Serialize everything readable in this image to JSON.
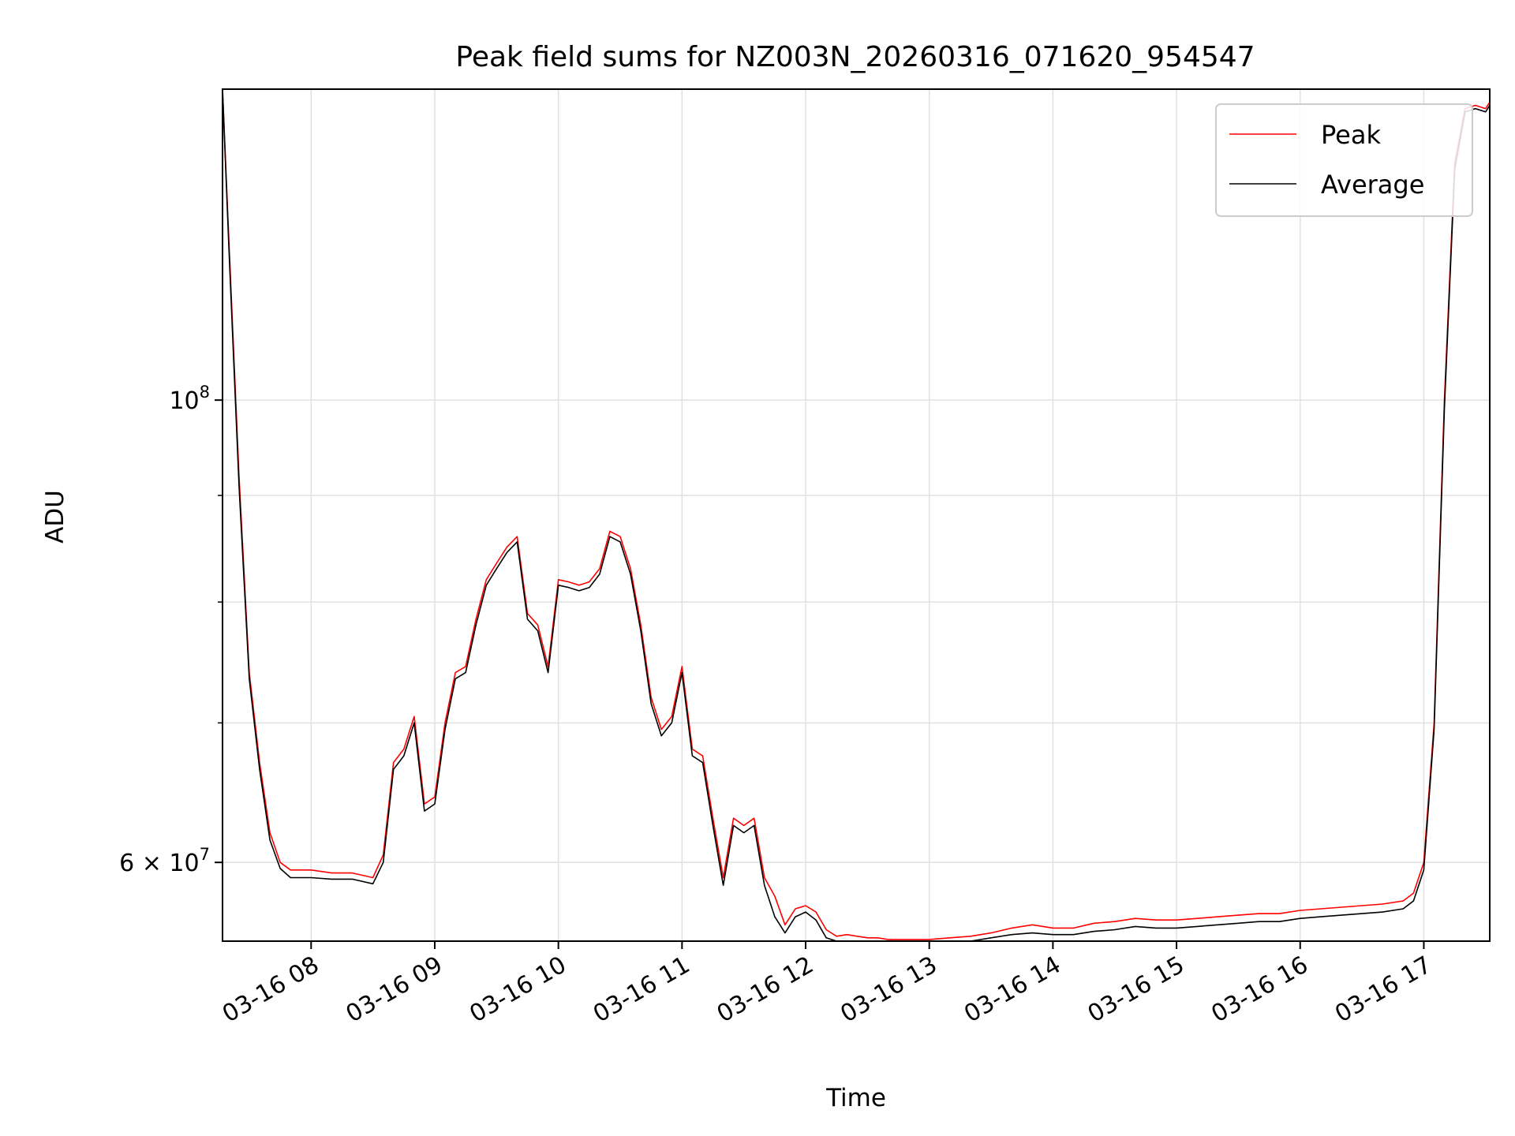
{
  "chart_data": {
    "type": "line",
    "title": "Peak field sums for NZ003N_20260316_071620_954547",
    "xlabel": "Time",
    "ylabel": "ADU",
    "yscale": "log",
    "grid": true,
    "legend_position": "top-right",
    "x_ticks": [
      "03-16 08",
      "03-16 09",
      "03-16 10",
      "03-16 11",
      "03-16 12",
      "03-16 13",
      "03-16 14",
      "03-16 15",
      "03-16 16",
      "03-16 17"
    ],
    "y_tick_labels": [
      {
        "value": 100000000,
        "mant": "10",
        "exp": "8"
      },
      {
        "value": 60000000,
        "mant": "6 × 10",
        "exp": "7"
      }
    ],
    "y_minor_ticks": [
      70000000,
      80000000,
      90000000
    ],
    "xlim": [
      "03-16 07:17",
      "03-16 17:32"
    ],
    "ylim": [
      55000000,
      141000000
    ],
    "x": [
      "07:17",
      "07:20",
      "07:25",
      "07:30",
      "07:35",
      "07:40",
      "07:45",
      "07:50",
      "08:00",
      "08:10",
      "08:20",
      "08:30",
      "08:35",
      "08:40",
      "08:45",
      "08:50",
      "08:55",
      "09:00",
      "09:05",
      "09:10",
      "09:15",
      "09:20",
      "09:25",
      "09:30",
      "09:35",
      "09:40",
      "09:45",
      "09:50",
      "09:55",
      "10:00",
      "10:05",
      "10:10",
      "10:15",
      "10:20",
      "10:25",
      "10:30",
      "10:35",
      "10:40",
      "10:45",
      "10:50",
      "10:55",
      "11:00",
      "11:05",
      "11:10",
      "11:15",
      "11:20",
      "11:25",
      "11:30",
      "11:35",
      "11:40",
      "11:45",
      "11:50",
      "11:55",
      "12:00",
      "12:05",
      "12:10",
      "12:15",
      "12:20",
      "12:25",
      "12:30",
      "12:35",
      "12:40",
      "12:45",
      "12:50",
      "13:00",
      "13:10",
      "13:20",
      "13:30",
      "13:40",
      "13:50",
      "14:00",
      "14:10",
      "14:20",
      "14:30",
      "14:40",
      "14:50",
      "15:00",
      "15:10",
      "15:20",
      "15:30",
      "15:40",
      "15:50",
      "16:00",
      "16:10",
      "16:20",
      "16:30",
      "16:40",
      "16:50",
      "16:55",
      "17:00",
      "17:05",
      "17:10",
      "17:15",
      "17:20",
      "17:25",
      "17:30",
      "17:32"
    ],
    "series": [
      {
        "name": "Peak",
        "color": "#ff0000",
        "values": [
          141000000,
          120000000,
          92000000,
          74000000,
          67000000,
          62000000,
          60000000,
          59500000,
          59500000,
          59300000,
          59300000,
          59000000,
          60500000,
          67000000,
          68000000,
          70500000,
          64000000,
          64500000,
          70000000,
          74000000,
          74500000,
          78500000,
          82000000,
          83500000,
          85000000,
          86000000,
          79000000,
          78000000,
          74500000,
          82000000,
          81800000,
          81500000,
          81800000,
          83000000,
          86500000,
          86000000,
          83000000,
          78000000,
          72000000,
          69500000,
          70500000,
          74500000,
          68000000,
          67500000,
          63000000,
          59000000,
          63000000,
          62500000,
          63000000,
          59000000,
          57800000,
          56000000,
          57000000,
          57200000,
          56800000,
          55700000,
          55300000,
          55400000,
          55300000,
          55200000,
          55200000,
          55100000,
          55100000,
          55100000,
          55100000,
          55200000,
          55300000,
          55500000,
          55800000,
          56000000,
          55800000,
          55800000,
          56100000,
          56200000,
          56400000,
          56300000,
          56300000,
          56400000,
          56500000,
          56600000,
          56700000,
          56700000,
          56900000,
          57000000,
          57100000,
          57200000,
          57300000,
          57500000,
          58000000,
          60000000,
          70000000,
          100000000,
          130000000,
          138000000,
          138500000,
          138000000,
          139000000
        ]
      },
      {
        "name": "Average",
        "color": "#000000",
        "values": [
          141000000,
          119000000,
          91000000,
          73500000,
          66500000,
          61500000,
          59600000,
          59000000,
          59000000,
          58900000,
          58900000,
          58600000,
          60000000,
          66500000,
          67500000,
          70000000,
          63500000,
          64000000,
          69500000,
          73500000,
          74000000,
          78000000,
          81500000,
          83000000,
          84500000,
          85500000,
          78500000,
          77500000,
          74000000,
          81500000,
          81300000,
          81000000,
          81300000,
          82500000,
          86000000,
          85500000,
          82500000,
          77500000,
          71500000,
          69000000,
          70000000,
          74000000,
          67500000,
          67000000,
          62500000,
          58500000,
          62500000,
          62000000,
          62500000,
          58500000,
          56500000,
          55500000,
          56500000,
          56800000,
          56300000,
          55200000,
          54900000,
          55000000,
          54900000,
          54800000,
          54800000,
          54800000,
          54800000,
          54800000,
          54800000,
          54900000,
          55000000,
          55200000,
          55400000,
          55500000,
          55400000,
          55400000,
          55600000,
          55700000,
          55900000,
          55800000,
          55800000,
          55900000,
          56000000,
          56100000,
          56200000,
          56200000,
          56400000,
          56500000,
          56600000,
          56700000,
          56800000,
          57000000,
          57500000,
          59500000,
          69500000,
          99000000,
          129000000,
          137500000,
          138000000,
          137500000,
          138500000
        ]
      }
    ]
  }
}
